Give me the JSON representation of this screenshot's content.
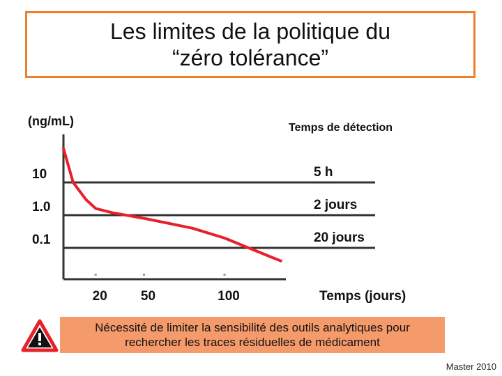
{
  "title": {
    "line1": "Les limites de la politique du",
    "line2": "“zéro tolérance”"
  },
  "chart_data": {
    "type": "line",
    "ylabel": "(ng/mL)",
    "xlabel": "Temps (jours)",
    "right_header": "Temps de détection",
    "y_scale": "log",
    "y_ticks": [
      "10",
      "1.0",
      "0.1"
    ],
    "x_ticks": [
      "20",
      "50",
      "100"
    ],
    "thresholds": [
      {
        "value": 10,
        "label": "5 h"
      },
      {
        "value": 1.0,
        "label": "2 jours"
      },
      {
        "value": 0.1,
        "label": "20 jours"
      }
    ],
    "series": [
      {
        "color": "#e8202a",
        "points": [
          [
            0,
            110
          ],
          [
            6,
            10
          ],
          [
            14,
            3
          ],
          [
            20,
            1.6
          ],
          [
            30,
            1.2
          ],
          [
            50,
            0.8
          ],
          [
            80,
            0.4
          ],
          [
            100,
            0.2
          ],
          [
            115,
            0.1
          ],
          [
            130,
            0.05
          ],
          [
            135,
            0.04
          ]
        ]
      }
    ],
    "grid": false
  },
  "warning": {
    "line1": "Nécessité de limiter la sensibilité des outils analytiques pour",
    "line2": "rechercher les traces résiduelles de médicament",
    "icon": "warning-triangle-icon",
    "box_color": "#f59a6b"
  },
  "footer": "Master 2010"
}
